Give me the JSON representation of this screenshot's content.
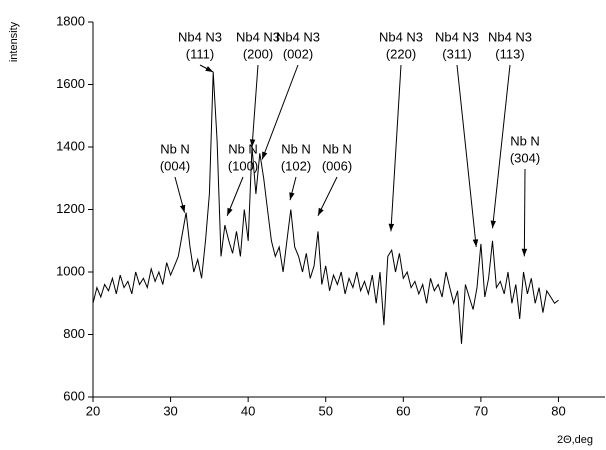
{
  "chart_data": {
    "type": "line",
    "y_label": "intensity",
    "x_label": "2Θ,deg",
    "color": "#000000",
    "xlim": [
      20,
      86
    ],
    "xticks": [
      20,
      30,
      40,
      50,
      60,
      70,
      80
    ],
    "ylim": [
      600,
      1800
    ],
    "yticks": [
      600,
      800,
      1000,
      1200,
      1400,
      1600,
      1800
    ],
    "x": [
      20,
      20.5,
      21,
      21.5,
      22,
      22.5,
      23,
      23.5,
      24,
      24.5,
      25,
      25.5,
      26,
      26.5,
      27,
      27.5,
      28,
      28.5,
      29,
      29.5,
      30,
      30.5,
      31,
      31.5,
      32,
      32.5,
      33,
      33.5,
      34,
      34.5,
      35,
      35.5,
      36,
      36.5,
      37,
      37.5,
      38,
      38.5,
      39,
      39.5,
      40,
      40.5,
      41,
      41.5,
      42,
      42.5,
      43,
      43.5,
      44,
      44.5,
      45,
      45.5,
      46,
      46.5,
      47,
      47.5,
      48,
      48.5,
      49,
      49.5,
      50,
      50.5,
      51,
      51.5,
      52,
      52.5,
      53,
      53.5,
      54,
      54.5,
      55,
      55.5,
      56,
      56.5,
      57,
      57.5,
      58,
      58.5,
      59,
      59.5,
      60,
      60.5,
      61,
      61.5,
      62,
      62.5,
      63,
      63.5,
      64,
      64.5,
      65,
      65.5,
      66,
      66.5,
      67,
      67.5,
      68,
      68.5,
      69,
      69.5,
      70,
      70.5,
      71,
      71.5,
      72,
      72.5,
      73,
      73.5,
      74,
      74.5,
      75,
      75.5,
      76,
      76.5,
      77,
      77.5,
      78,
      78.5,
      79,
      79.5,
      80
    ],
    "values": [
      900,
      950,
      920,
      960,
      940,
      980,
      930,
      990,
      950,
      970,
      930,
      1000,
      960,
      980,
      950,
      1010,
      970,
      1000,
      960,
      1030,
      990,
      1020,
      1050,
      1120,
      1190,
      1080,
      1000,
      1040,
      980,
      1100,
      1250,
      1640,
      1420,
      1050,
      1150,
      1100,
      1060,
      1130,
      1050,
      1200,
      1100,
      1400,
      1250,
      1380,
      1300,
      1200,
      1100,
      1050,
      1080,
      1000,
      1100,
      1200,
      1080,
      1050,
      1000,
      1060,
      980,
      1020,
      1130,
      960,
      1020,
      940,
      990,
      960,
      1000,
      930,
      980,
      950,
      1000,
      940,
      970,
      930,
      990,
      900,
      1000,
      830,
      1050,
      1070,
      1000,
      1060,
      980,
      1000,
      950,
      970,
      930,
      960,
      900,
      980,
      940,
      960,
      920,
      1000,
      950,
      900,
      940,
      770,
      960,
      920,
      880,
      950,
      1090,
      920,
      980,
      1100,
      950,
      970,
      930,
      1000,
      900,
      960,
      850,
      1000,
      930,
      980,
      900,
      950,
      870,
      940,
      920,
      900,
      910
    ],
    "annotations": [
      {
        "label": [
          "Nb N",
          "(004)"
        ],
        "x": 31.8,
        "y": 1190
      },
      {
        "label": [
          "Nb4 N3",
          "(111)"
        ],
        "x": 35.5,
        "y": 1640
      },
      {
        "label": [
          "Nb N",
          "(100)"
        ],
        "x": 37.3,
        "y": 1180
      },
      {
        "label": [
          "Nb4 N3",
          "(200)"
        ],
        "x": 40.5,
        "y": 1400
      },
      {
        "label": [
          "Nb4 N3",
          "(002)"
        ],
        "x": 41.8,
        "y": 1360
      },
      {
        "label": [
          "Nb N",
          "(102)"
        ],
        "x": 45.4,
        "y": 1230
      },
      {
        "label": [
          "Nb N",
          "(006)"
        ],
        "x": 49,
        "y": 1180
      },
      {
        "label": [
          "Nb4 N3",
          "(220)"
        ],
        "x": 58.4,
        "y": 1130
      },
      {
        "label": [
          "Nb4 N3",
          "(311)"
        ],
        "x": 69.4,
        "y": 1080
      },
      {
        "label": [
          "Nb4 N3",
          "(113)"
        ],
        "x": 71.5,
        "y": 1140
      },
      {
        "label": [
          "Nb N",
          "(304)"
        ],
        "x": 75.6,
        "y": 1050
      }
    ]
  }
}
